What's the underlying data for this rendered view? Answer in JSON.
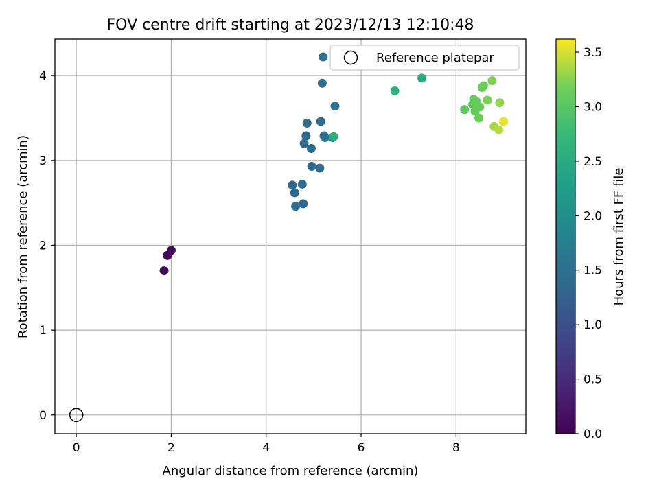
{
  "chart_data": {
    "type": "scatter",
    "title": "FOV centre drift starting at 2023/12/13 12:10:48",
    "xlabel": "Angular distance from reference (arcmin)",
    "ylabel": "Rotation from reference (arcmin)",
    "xlim": [
      -0.45,
      9.47
    ],
    "ylim": [
      -0.22,
      4.43
    ],
    "xticks": [
      0,
      2,
      4,
      6,
      8
    ],
    "yticks": [
      0,
      1,
      2,
      3,
      4
    ],
    "grid": true,
    "legend": {
      "position": "top-right",
      "entries": [
        "Reference platepar"
      ]
    },
    "reference_point": {
      "x": 0,
      "y": 0,
      "label": "Reference platepar"
    },
    "colorbar": {
      "label": "Hours from first FF file",
      "colormap": "viridis",
      "range": [
        0.0,
        3.62
      ],
      "ticks": [
        "0.0",
        "0.5",
        "1.0",
        "1.5",
        "2.0",
        "2.5",
        "3.0",
        "3.5"
      ],
      "tick_values": [
        0.0,
        0.5,
        1.0,
        1.5,
        2.0,
        2.5,
        3.0,
        3.5
      ]
    },
    "points": [
      {
        "x": 1.85,
        "y": 1.7,
        "c": 0.05
      },
      {
        "x": 1.92,
        "y": 1.88,
        "c": 0.08
      },
      {
        "x": 2.0,
        "y": 1.94,
        "c": 0.1
      },
      {
        "x": 4.55,
        "y": 2.71,
        "c": 1.35
      },
      {
        "x": 4.6,
        "y": 2.62,
        "c": 1.38
      },
      {
        "x": 4.62,
        "y": 2.46,
        "c": 1.4
      },
      {
        "x": 4.76,
        "y": 2.72,
        "c": 1.42
      },
      {
        "x": 4.78,
        "y": 2.49,
        "c": 1.4
      },
      {
        "x": 4.8,
        "y": 3.2,
        "c": 1.42
      },
      {
        "x": 4.84,
        "y": 3.29,
        "c": 1.44
      },
      {
        "x": 4.86,
        "y": 3.44,
        "c": 1.45
      },
      {
        "x": 4.95,
        "y": 3.14,
        "c": 1.45
      },
      {
        "x": 4.96,
        "y": 2.93,
        "c": 1.44
      },
      {
        "x": 5.13,
        "y": 2.91,
        "c": 1.46
      },
      {
        "x": 5.15,
        "y": 3.46,
        "c": 1.47
      },
      {
        "x": 5.18,
        "y": 3.91,
        "c": 1.48
      },
      {
        "x": 5.2,
        "y": 4.22,
        "c": 1.5
      },
      {
        "x": 5.22,
        "y": 3.29,
        "c": 1.5
      },
      {
        "x": 5.24,
        "y": 3.27,
        "c": 1.51
      },
      {
        "x": 5.4,
        "y": 3.27,
        "c": 1.55
      },
      {
        "x": 5.45,
        "y": 3.64,
        "c": 1.56
      },
      {
        "x": 5.42,
        "y": 3.28,
        "c": 2.55
      },
      {
        "x": 6.71,
        "y": 3.82,
        "c": 2.55
      },
      {
        "x": 7.28,
        "y": 3.97,
        "c": 2.5
      },
      {
        "x": 8.18,
        "y": 3.6,
        "c": 3.05
      },
      {
        "x": 8.35,
        "y": 3.66,
        "c": 3.02
      },
      {
        "x": 8.37,
        "y": 3.72,
        "c": 3.05
      },
      {
        "x": 8.4,
        "y": 3.58,
        "c": 3.1
      },
      {
        "x": 8.42,
        "y": 3.7,
        "c": 3.08
      },
      {
        "x": 8.45,
        "y": 3.64,
        "c": 3.12
      },
      {
        "x": 8.48,
        "y": 3.5,
        "c": 3.15
      },
      {
        "x": 8.5,
        "y": 3.63,
        "c": 3.1
      },
      {
        "x": 8.55,
        "y": 3.86,
        "c": 3.12
      },
      {
        "x": 8.58,
        "y": 3.88,
        "c": 3.15
      },
      {
        "x": 8.66,
        "y": 3.71,
        "c": 3.2
      },
      {
        "x": 8.76,
        "y": 3.94,
        "c": 3.22
      },
      {
        "x": 8.8,
        "y": 3.4,
        "c": 3.35
      },
      {
        "x": 8.9,
        "y": 3.36,
        "c": 3.4
      },
      {
        "x": 8.92,
        "y": 3.68,
        "c": 3.28
      },
      {
        "x": 9.0,
        "y": 3.46,
        "c": 3.55
      }
    ]
  }
}
